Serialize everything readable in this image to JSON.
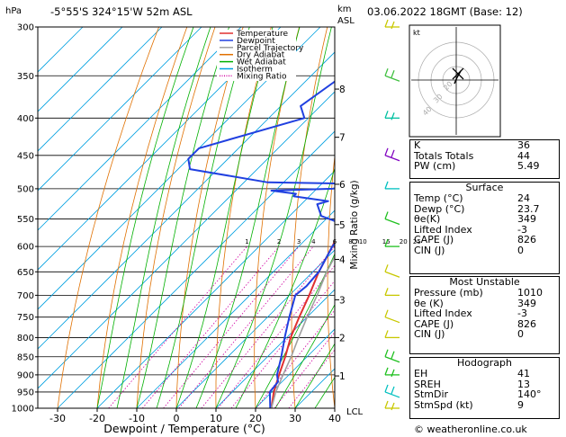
{
  "header": {
    "location": "-5°55'S  324°15'W  52m  ASL",
    "datetime": "03.06.2022  18GMT  (Base: 12)",
    "pressure_unit": "hPa",
    "km_label": "km",
    "asl_label": "ASL",
    "xlabel": "Dewpoint / Temperature (°C)",
    "mixing_label": "Mixing Ratio (g/kg)",
    "lcl_label": "LCL",
    "hodo_unit": "kt",
    "copyright": "© weatheronline.co.uk"
  },
  "legend": [
    {
      "label": "Temperature",
      "color": "#e03030",
      "dotted": false
    },
    {
      "label": "Dewpoint",
      "color": "#2040e0",
      "dotted": false
    },
    {
      "label": "Parcel Trajectory",
      "color": "#a0a0a0",
      "dotted": false
    },
    {
      "label": "Dry Adiabat",
      "color": "#e07000",
      "dotted": false
    },
    {
      "label": "Wet Adiabat",
      "color": "#00b000",
      "dotted": false
    },
    {
      "label": "Isotherm",
      "color": "#00a0e0",
      "dotted": false
    },
    {
      "label": "Mixing Ratio",
      "color": "#d000a0",
      "dotted": true
    }
  ],
  "indices": [
    {
      "label": "K",
      "value": "36"
    },
    {
      "label": "Totals Totals",
      "value": "44"
    },
    {
      "label": "PW (cm)",
      "value": "5.49"
    }
  ],
  "surface": {
    "title": "Surface",
    "rows": [
      {
        "label": "Temp (°C)",
        "value": "24"
      },
      {
        "label": "Dewp (°C)",
        "value": "23.7"
      },
      {
        "label": "θe(K)",
        "value": "349"
      },
      {
        "label": "Lifted Index",
        "value": "-3"
      },
      {
        "label": "CAPE (J)",
        "value": "826"
      },
      {
        "label": "CIN (J)",
        "value": "0"
      }
    ]
  },
  "unstable": {
    "title": "Most Unstable",
    "rows": [
      {
        "label": "Pressure (mb)",
        "value": "1010"
      },
      {
        "label": "θe (K)",
        "value": "349"
      },
      {
        "label": "Lifted Index",
        "value": "-3"
      },
      {
        "label": "CAPE (J)",
        "value": "826"
      },
      {
        "label": "CIN (J)",
        "value": "0"
      }
    ]
  },
  "hodograph": {
    "title": "Hodograph",
    "rows": [
      {
        "label": "EH",
        "value": "41"
      },
      {
        "label": "SREH",
        "value": "13"
      },
      {
        "label": "StmDir",
        "value": "140°"
      },
      {
        "label": "StmSpd (kt)",
        "value": "9"
      }
    ],
    "ring_labels": [
      "40",
      "30",
      "20"
    ]
  },
  "chart_data": {
    "type": "line",
    "title": "",
    "xlabel": "Dewpoint / Temperature (°C)",
    "ylabel": "hPa",
    "xlim": [
      -35,
      40
    ],
    "ylim": [
      1000,
      300
    ],
    "pressure_ticks": [
      300,
      350,
      400,
      450,
      500,
      550,
      600,
      650,
      700,
      750,
      800,
      850,
      900,
      950,
      1000
    ],
    "temp_ticks": [
      -30,
      -20,
      -10,
      0,
      10,
      20,
      30,
      40
    ],
    "km_ticks": [
      {
        "km": "1",
        "p": 903
      },
      {
        "km": "2",
        "p": 800
      },
      {
        "km": "3",
        "p": 710
      },
      {
        "km": "4",
        "p": 625
      },
      {
        "km": "5",
        "p": 560
      },
      {
        "km": "6",
        "p": 493
      },
      {
        "km": "7",
        "p": 425
      },
      {
        "km": "8",
        "p": 365
      }
    ],
    "mixing_ratios": [
      "1",
      "2",
      "3",
      "4",
      "6",
      "8",
      "10",
      "15",
      "20",
      "25"
    ],
    "series": [
      {
        "name": "Temperature",
        "points": [
          [
            1000,
            24
          ],
          [
            950,
            20.5
          ],
          [
            900,
            17.5
          ],
          [
            850,
            14.5
          ],
          [
            800,
            11
          ],
          [
            750,
            8
          ],
          [
            700,
            5
          ],
          [
            650,
            1.5
          ],
          [
            600,
            -1.5
          ],
          [
            550,
            -5
          ],
          [
            500,
            -8.5
          ],
          [
            450,
            -12
          ],
          [
            400,
            -18.5
          ],
          [
            350,
            -26
          ],
          [
            300,
            -33
          ]
        ]
      },
      {
        "name": "Dewpoint",
        "points": [
          [
            1000,
            23.7
          ],
          [
            950,
            19.5
          ],
          [
            920,
            19
          ],
          [
            900,
            17
          ],
          [
            850,
            13.5
          ],
          [
            800,
            9.5
          ],
          [
            750,
            5.5
          ],
          [
            700,
            1.5
          ],
          [
            680,
            2
          ],
          [
            650,
            1.5
          ],
          [
            600,
            -1.5
          ],
          [
            575,
            -2
          ],
          [
            560,
            -4
          ],
          [
            545,
            -12
          ],
          [
            525,
            -16
          ],
          [
            520,
            -14
          ],
          [
            512,
            -24
          ],
          [
            508,
            -24
          ],
          [
            503,
            -31
          ],
          [
            500,
            -16
          ],
          [
            497,
            -14
          ],
          [
            492,
            -14
          ],
          [
            490,
            -34
          ],
          [
            470,
            -57
          ],
          [
            455,
            -60
          ],
          [
            440,
            -60
          ],
          [
            400,
            -41
          ],
          [
            385,
            -45
          ],
          [
            350,
            -42
          ],
          [
            300,
            -51
          ]
        ]
      },
      {
        "name": "Parcel Trajectory",
        "points": [
          [
            1000,
            24
          ],
          [
            950,
            21
          ],
          [
            900,
            18.5
          ],
          [
            850,
            16
          ],
          [
            800,
            13
          ],
          [
            750,
            10
          ],
          [
            700,
            7
          ],
          [
            650,
            3.5
          ],
          [
            600,
            0.5
          ],
          [
            550,
            -3
          ],
          [
            500,
            -7
          ],
          [
            450,
            -11.5
          ],
          [
            400,
            -17
          ],
          [
            350,
            -23.5
          ],
          [
            300,
            -31
          ]
        ]
      }
    ],
    "wind_barb_pressures": [
      1000,
      950,
      900,
      850,
      800,
      750,
      700,
      650,
      600,
      550,
      500,
      450,
      400,
      350,
      300
    ]
  }
}
